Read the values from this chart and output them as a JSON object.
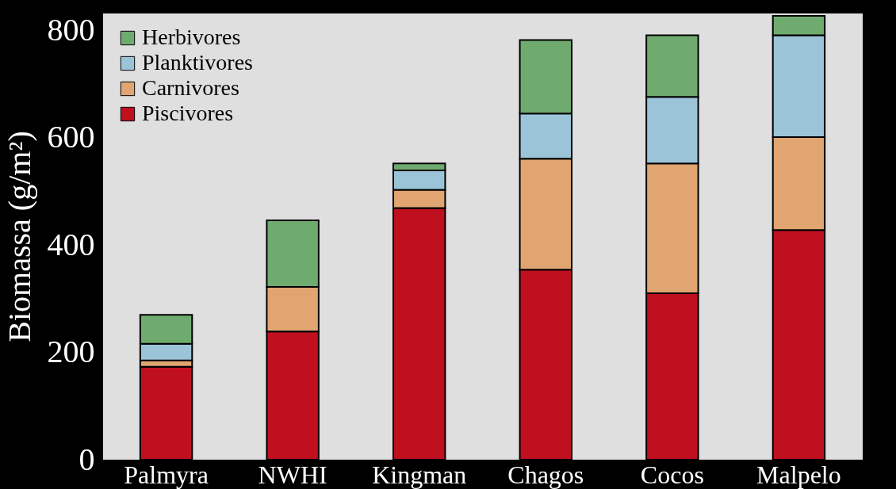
{
  "chart_data": {
    "type": "bar",
    "stacked": true,
    "ylabel": "Biomassa (g/m²)",
    "categories": [
      "Palmyra",
      "NWHI",
      "Kingman",
      "Chagos",
      "Cocos",
      "Malpelo"
    ],
    "series": [
      {
        "name": "Piscivores",
        "color": "#c01020",
        "values": [
          173,
          239,
          469,
          354,
          310,
          428
        ]
      },
      {
        "name": "Carnivores",
        "color": "#e0a571",
        "values": [
          12,
          83,
          34,
          207,
          242,
          173
        ]
      },
      {
        "name": "Planktivores",
        "color": "#9cc4d8",
        "values": [
          31,
          0,
          36,
          84,
          124,
          190
        ]
      },
      {
        "name": "Herbivores",
        "color": "#6fab6f",
        "values": [
          54,
          124,
          13,
          137,
          115,
          36
        ]
      }
    ],
    "ylim": [
      0,
      833
    ],
    "yticks": [
      0,
      200,
      400,
      600,
      800
    ],
    "grid": false,
    "legend": "top left"
  }
}
